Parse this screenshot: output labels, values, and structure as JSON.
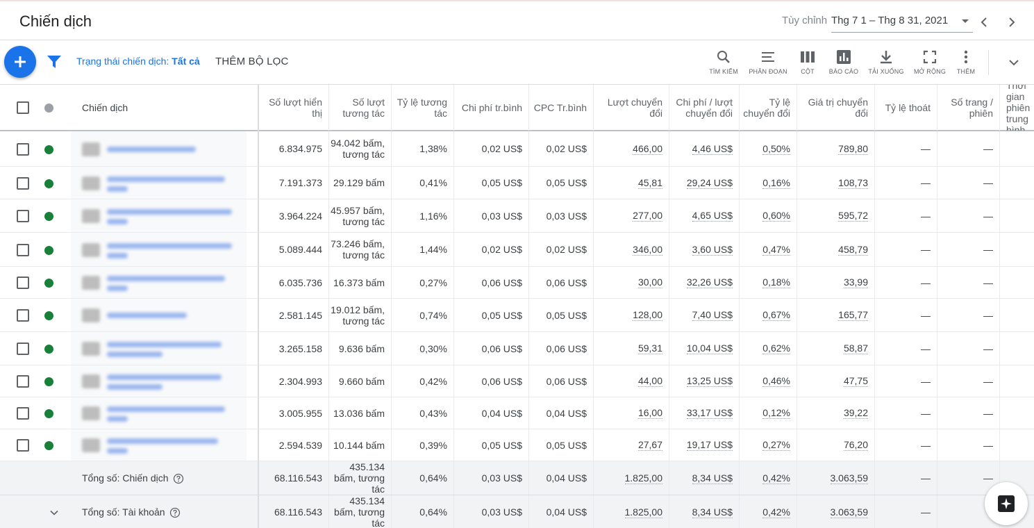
{
  "header": {
    "title": "Chiến dịch",
    "date_label": "Tùy chỉnh",
    "date_range": "Thg 7 1 – Thg 8 31, 2021"
  },
  "toolbar": {
    "filter_label": "Trạng thái chiến dịch: ",
    "filter_value": "Tất cả",
    "add_filter": "THÊM BỘ LỌC",
    "tools": [
      {
        "label": "TÌM KIẾM",
        "icon": "search-icon"
      },
      {
        "label": "PHÂN ĐOẠN",
        "icon": "segment-icon"
      },
      {
        "label": "CỘT",
        "icon": "columns-icon"
      },
      {
        "label": "BÁO CÁO",
        "icon": "report-icon"
      },
      {
        "label": "TẢI XUỐNG",
        "icon": "download-icon"
      },
      {
        "label": "MỞ RỘNG",
        "icon": "fullscreen-icon"
      },
      {
        "label": "THÊM",
        "icon": "more-vert-icon"
      }
    ]
  },
  "columns": {
    "campaign": "Chiến dịch",
    "impressions": "Số lượt hiển thị",
    "interactions": "Số lượt tương tác",
    "interaction_rate": "Tỷ lệ tương tác",
    "avg_cost": "Chi phí tr.bình",
    "avg_cpc": "CPC Tr.bình",
    "conversions": "Lượt chuyển đổi",
    "cost_per_conv": "Chi phí / lượt chuyển đổi",
    "conv_rate": "Tỷ lệ chuyển đổi",
    "conv_value": "Giá trị chuyển đổi",
    "bounce_rate": "Tỷ lệ thoát",
    "pages_session": "Số trang / phiên",
    "avg_session": "Thời gian phiên trung bình"
  },
  "rows": [
    {
      "impressions": "6.834.975",
      "interactions": "94.042 bấm, tương tác",
      "interaction_rate": "1,38%",
      "avg_cost": "0,02 US$",
      "avg_cpc": "0,02 US$",
      "conversions": "466,00",
      "cost_per_conv": "4,46 US$",
      "conv_rate": "0,50%",
      "conv_value": "789,80",
      "bounce_rate": "—",
      "pages_session": "—"
    },
    {
      "impressions": "7.191.373",
      "interactions": "29.129 bấm",
      "interaction_rate": "0,41%",
      "avg_cost": "0,05 US$",
      "avg_cpc": "0,05 US$",
      "conversions": "45,81",
      "cost_per_conv": "29,24 US$",
      "conv_rate": "0,16%",
      "conv_value": "108,73",
      "bounce_rate": "—",
      "pages_session": "—"
    },
    {
      "impressions": "3.964.224",
      "interactions": "45.957 bấm, tương tác",
      "interaction_rate": "1,16%",
      "avg_cost": "0,03 US$",
      "avg_cpc": "0,03 US$",
      "conversions": "277,00",
      "cost_per_conv": "4,65 US$",
      "conv_rate": "0,60%",
      "conv_value": "595,72",
      "bounce_rate": "—",
      "pages_session": "—"
    },
    {
      "impressions": "5.089.444",
      "interactions": "73.246 bấm, tương tác",
      "interaction_rate": "1,44%",
      "avg_cost": "0,02 US$",
      "avg_cpc": "0,02 US$",
      "conversions": "346,00",
      "cost_per_conv": "3,60 US$",
      "conv_rate": "0,47%",
      "conv_value": "458,79",
      "bounce_rate": "—",
      "pages_session": "—"
    },
    {
      "impressions": "6.035.736",
      "interactions": "16.373 bấm",
      "interaction_rate": "0,27%",
      "avg_cost": "0,06 US$",
      "avg_cpc": "0,06 US$",
      "conversions": "30,00",
      "cost_per_conv": "32,26 US$",
      "conv_rate": "0,18%",
      "conv_value": "33,99",
      "bounce_rate": "—",
      "pages_session": "—"
    },
    {
      "impressions": "2.581.145",
      "interactions": "19.012 bấm, tương tác",
      "interaction_rate": "0,74%",
      "avg_cost": "0,05 US$",
      "avg_cpc": "0,05 US$",
      "conversions": "128,00",
      "cost_per_conv": "7,40 US$",
      "conv_rate": "0,67%",
      "conv_value": "165,77",
      "bounce_rate": "—",
      "pages_session": "—"
    },
    {
      "impressions": "3.265.158",
      "interactions": "9.636 bấm",
      "interaction_rate": "0,30%",
      "avg_cost": "0,06 US$",
      "avg_cpc": "0,06 US$",
      "conversions": "59,31",
      "cost_per_conv": "10,04 US$",
      "conv_rate": "0,62%",
      "conv_value": "58,87",
      "bounce_rate": "—",
      "pages_session": "—"
    },
    {
      "impressions": "2.304.993",
      "interactions": "9.660 bấm",
      "interaction_rate": "0,42%",
      "avg_cost": "0,06 US$",
      "avg_cpc": "0,06 US$",
      "conversions": "44,00",
      "cost_per_conv": "13,25 US$",
      "conv_rate": "0,46%",
      "conv_value": "47,75",
      "bounce_rate": "—",
      "pages_session": "—"
    },
    {
      "impressions": "3.005.955",
      "interactions": "13.036 bấm",
      "interaction_rate": "0,43%",
      "avg_cost": "0,04 US$",
      "avg_cpc": "0,04 US$",
      "conversions": "16,00",
      "cost_per_conv": "33,17 US$",
      "conv_rate": "0,12%",
      "conv_value": "39,22",
      "bounce_rate": "—",
      "pages_session": "—"
    },
    {
      "impressions": "2.594.539",
      "interactions": "10.144 bấm",
      "interaction_rate": "0,39%",
      "avg_cost": "0,05 US$",
      "avg_cpc": "0,05 US$",
      "conversions": "27,67",
      "cost_per_conv": "19,17 US$",
      "conv_rate": "0,27%",
      "conv_value": "76,20",
      "bounce_rate": "—",
      "pages_session": "—"
    }
  ],
  "totals": [
    {
      "label": "Tổng số: Chiến dịch",
      "impressions": "68.116.543",
      "interactions": "435.134 bấm, tương tác",
      "interaction_rate": "0,64%",
      "avg_cost": "0,03 US$",
      "avg_cpc": "0,04 US$",
      "conversions": "1.825,00",
      "cost_per_conv": "8,34 US$",
      "conv_rate": "0,42%",
      "conv_value": "3.063,59",
      "bounce_rate": "—",
      "pages_session": "—"
    },
    {
      "label": "Tổng số: Tài khoản",
      "impressions": "68.116.543",
      "interactions": "435.134 bấm, tương tác",
      "interaction_rate": "0,64%",
      "avg_cost": "0,03 US$",
      "avg_cpc": "0,04 US$",
      "conversions": "1.825,00",
      "cost_per_conv": "8,34 US$",
      "conv_rate": "0,42%",
      "conv_value": "3.063,59",
      "bounce_rate": "—",
      "pages_session": ""
    }
  ],
  "colors": {
    "accent": "#1a73e8",
    "status_enabled": "#188038"
  }
}
